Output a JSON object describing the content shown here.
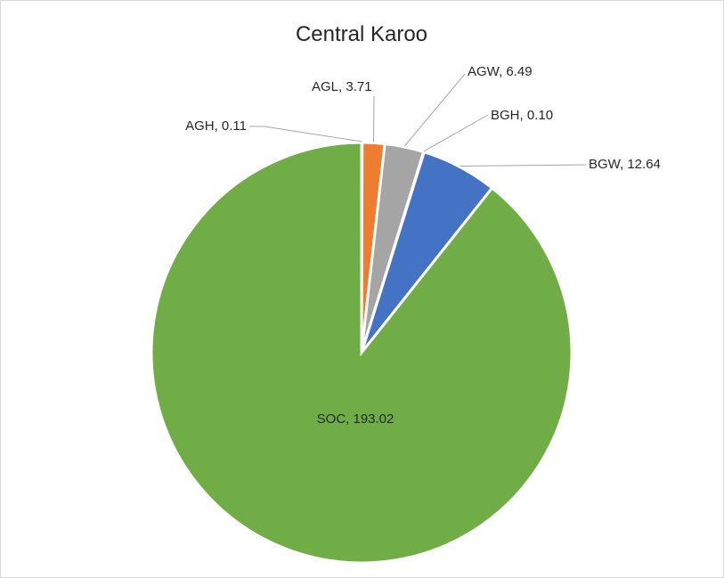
{
  "chart_data": {
    "type": "pie",
    "title": "Central Karoo",
    "start": "top",
    "direction": "clockwise",
    "slices": [
      {
        "label": "AGH",
        "value": 0.11,
        "color": "#4472C4"
      },
      {
        "label": "AGL",
        "value": 3.71,
        "color": "#ED7D31"
      },
      {
        "label": "AGW",
        "value": 6.49,
        "color": "#A5A5A5"
      },
      {
        "label": "BGH",
        "value": 0.1,
        "color": "#FFC000"
      },
      {
        "label": "BGW",
        "value": 12.64,
        "color": "#4472C4"
      },
      {
        "label": "SOC",
        "value": 193.02,
        "color": "#70AD47"
      }
    ],
    "data_labels": [
      "AGH, 0.11",
      "AGL, 3.71",
      "AGW, 6.49",
      "BGH, 0.10",
      "BGW, 12.64",
      "SOC, 193.02"
    ]
  }
}
